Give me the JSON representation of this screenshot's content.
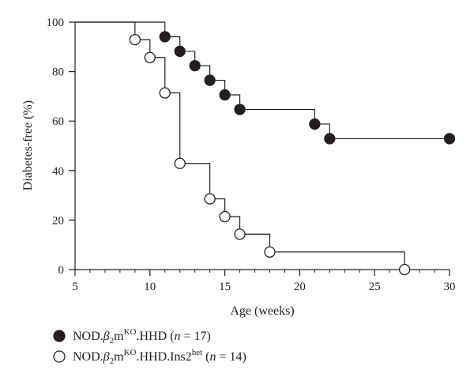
{
  "chart_data": {
    "type": "line",
    "step": true,
    "xlabel": "Age (weeks)",
    "ylabel": "Diabetes-free (%)",
    "xlim": [
      5,
      30
    ],
    "ylim": [
      0,
      100
    ],
    "xticks": [
      5,
      10,
      15,
      20,
      25,
      30
    ],
    "yticks": [
      0,
      20,
      40,
      60,
      80,
      100
    ],
    "xticks_minor_step": 1,
    "grid": false,
    "legend_position": "bottom-left",
    "series": [
      {
        "name": "NOD.β2m<sup>KO</sup>.HHD (n = 17)",
        "legend": {
          "prefix": "NOD.",
          "beta": "β",
          "sub": "2",
          "m": "m",
          "sup": "KO",
          "suffix": ".HHD (",
          "n_sym": "n",
          "n_text": " = 17)"
        },
        "marker": "filled-circle",
        "color": "#231f20",
        "x": [
          5,
          11,
          12,
          13,
          14,
          15,
          16,
          21,
          22,
          30
        ],
        "y": [
          100,
          94.1,
          88.2,
          82.4,
          76.5,
          70.6,
          64.7,
          58.8,
          52.9,
          52.9
        ],
        "markers_x": [
          11,
          12,
          13,
          14,
          15,
          16,
          21,
          22,
          30
        ],
        "markers_y": [
          94.1,
          88.2,
          82.4,
          76.5,
          70.6,
          64.7,
          58.8,
          52.9,
          52.9
        ]
      },
      {
        "name": "NOD.β2m<sup>KO</sup>.HHD.Ins2<sup>het</sup> (n = 14)",
        "legend": {
          "prefix": "NOD.",
          "beta": "β",
          "sub": "2",
          "m": "m",
          "sup": "KO",
          "mid": ".HHD.Ins2",
          "sup2": "het",
          "suffix": " (",
          "n_sym": "n",
          "n_text": " = 14)"
        },
        "marker": "open-circle",
        "color": "#231f20",
        "x": [
          5,
          9,
          10,
          11,
          12,
          14,
          15,
          16,
          18,
          27
        ],
        "y": [
          100,
          92.9,
          85.7,
          71.4,
          42.9,
          28.6,
          21.4,
          14.3,
          7.1,
          0
        ],
        "markers_x": [
          9,
          10,
          11,
          12,
          14,
          15,
          16,
          18,
          27
        ],
        "markers_y": [
          92.9,
          85.7,
          71.4,
          42.9,
          28.6,
          21.4,
          14.3,
          7.1,
          0
        ]
      }
    ]
  }
}
